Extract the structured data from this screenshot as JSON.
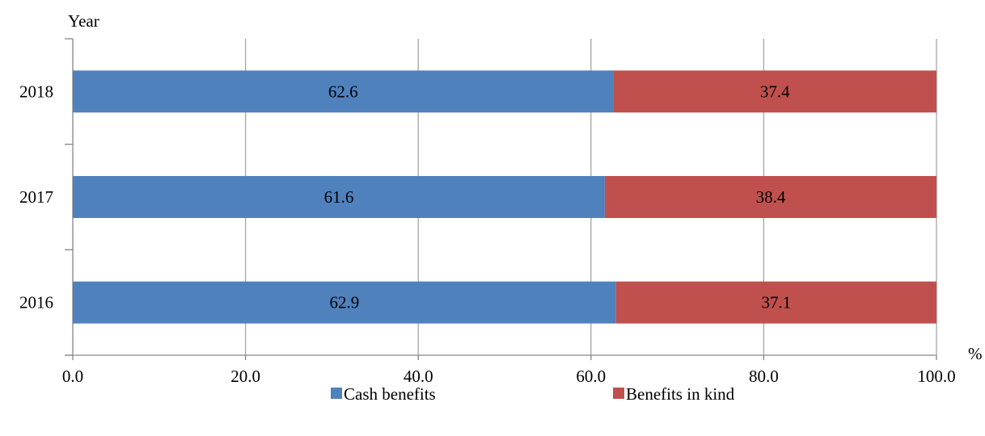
{
  "chart_data": {
    "type": "bar",
    "orientation": "horizontal",
    "stacked": true,
    "categories": [
      "2018",
      "2017",
      "2016"
    ],
    "series": [
      {
        "name": "Cash benefits",
        "values": [
          62.6,
          61.6,
          62.9
        ],
        "labels": [
          "62.6",
          "61.6",
          "62.9"
        ],
        "color": "#4f81bd"
      },
      {
        "name": "Benefits in kind",
        "values": [
          37.4,
          38.4,
          37.1
        ],
        "labels": [
          "37.4",
          "38.4",
          "37.1"
        ],
        "color": "#c0504d"
      }
    ],
    "xlabel": "%",
    "ylabel": "Year",
    "xlim": [
      0,
      100
    ],
    "xticks": [
      0,
      20,
      40,
      60,
      80,
      100
    ],
    "xtick_labels": [
      "0.0",
      "20.0",
      "40.0",
      "60.0",
      "80.0",
      "100.0"
    ],
    "grid": "vertical",
    "gridline_color": "#a6a6a6",
    "legend": "bottom"
  }
}
